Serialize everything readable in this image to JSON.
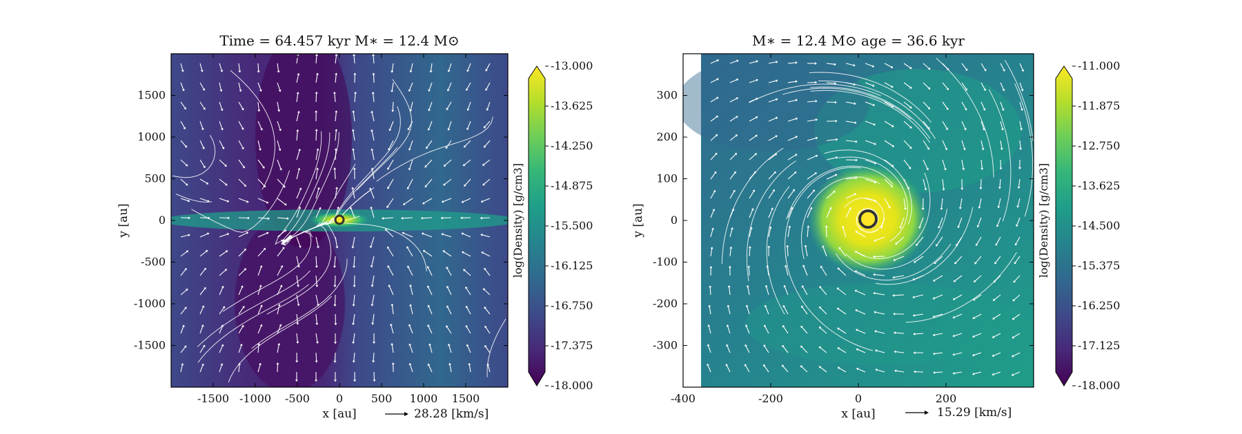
{
  "chart_data": [
    {
      "type": "heatmap",
      "title": "Time = 64.457 kyr    M$_*$ = 12.4 M$_\\odot$",
      "title_display": "Time = 64.457 kyr    M∗ = 12.4 M⊙",
      "xlabel": "x [au]",
      "ylabel": "y [au]",
      "xlim": [
        -2000,
        2000
      ],
      "ylim": [
        -2000,
        2000
      ],
      "xticks": [
        -1500,
        -1000,
        -500,
        0,
        500,
        1000,
        1500
      ],
      "yticks": [
        1500,
        1000,
        500,
        0,
        -500,
        -1000,
        -1500
      ],
      "velocity_key": "28.28 [km/s]",
      "colorbar": {
        "label": "log(Density) [g/cm3]",
        "range": [
          -18.0,
          -13.0
        ],
        "ticks": [
          "-13.000",
          "-13.625",
          "-14.250",
          "-14.875",
          "-15.500",
          "-16.125",
          "-16.750",
          "-17.375",
          "-18.000"
        ]
      },
      "star": {
        "x": 0,
        "y": 0
      }
    },
    {
      "type": "heatmap",
      "title": "M$_*$ = 12.4 M$_\\odot$          age = 36.6 kyr",
      "title_display": "M∗ = 12.4 M⊙          age = 36.6 kyr",
      "xlabel": "x [au]",
      "ylabel": "y [au]",
      "xlim": [
        -400,
        400
      ],
      "ylim": [
        -400,
        400
      ],
      "xticks": [
        -400,
        -200,
        0,
        200
      ],
      "yticks": [
        300,
        200,
        100,
        0,
        -100,
        -200,
        -300
      ],
      "velocity_key": "15.29 [km/s]",
      "colorbar": {
        "label": "log(Density) [g/cm3]",
        "range": [
          -18.0,
          -11.0
        ],
        "ticks": [
          "-11.000",
          "-11.875",
          "-12.750",
          "-13.625",
          "-14.500",
          "-15.375",
          "-16.250",
          "-17.125",
          "-18.000"
        ]
      },
      "star": {
        "x": 0,
        "y": 0
      }
    }
  ],
  "colors": {
    "viridis": [
      "#440154",
      "#482878",
      "#3e4989",
      "#31688e",
      "#26828e",
      "#1f9e89",
      "#35b779",
      "#6ece58",
      "#b5de2b",
      "#fde725"
    ],
    "stream": "#ffffff",
    "star_edge": "#333333",
    "star_face": "#ffffff"
  }
}
